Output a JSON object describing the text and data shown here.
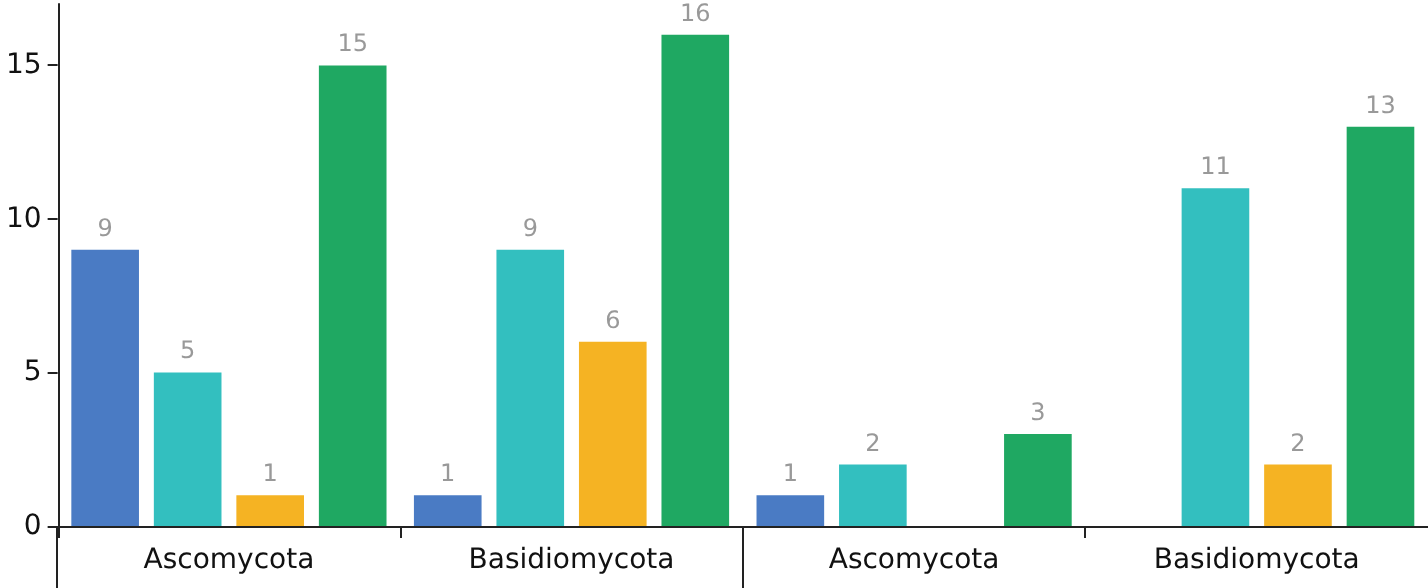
{
  "chart_data": {
    "type": "bar",
    "categories": [
      "Ascomycota",
      "Basidiomycota",
      "Ascomycota",
      "Basidiomycota"
    ],
    "series": [
      {
        "color": "#4a7bc4",
        "values": [
          9,
          1,
          1,
          null
        ]
      },
      {
        "color": "#33bfbf",
        "values": [
          5,
          9,
          2,
          11
        ]
      },
      {
        "color": "#f5b323",
        "values": [
          1,
          6,
          null,
          2
        ]
      },
      {
        "color": "#1fa862",
        "values": [
          15,
          16,
          3,
          13
        ]
      }
    ],
    "ylim": [
      0,
      17
    ],
    "yticks": [
      0,
      5,
      10,
      15
    ],
    "data_labels": true
  }
}
